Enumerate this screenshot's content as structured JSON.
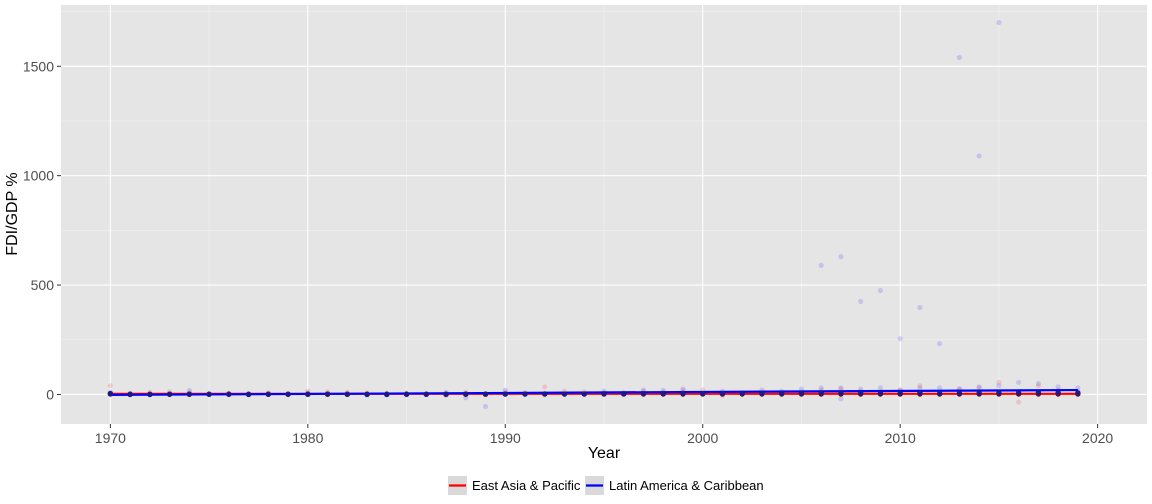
{
  "chart_data": {
    "type": "scatter",
    "title": "",
    "xlabel": "Year",
    "ylabel": "FDI/GDP %",
    "xlim": [
      1967.5,
      2022.5
    ],
    "ylim": [
      -135,
      1780
    ],
    "x_ticks": [
      1970,
      1980,
      1990,
      2000,
      2010,
      2020
    ],
    "y_ticks": [
      0,
      500,
      1000,
      1500
    ],
    "grid": true,
    "legend_position": "bottom",
    "background": "#e5e5e5",
    "series": [
      {
        "name": "East Asia & Pacific",
        "color": "#ff0000",
        "raw_points": [
          [
            1970,
            40
          ],
          [
            1970,
            5
          ],
          [
            1972,
            10
          ],
          [
            1973,
            12
          ],
          [
            1974,
            8
          ],
          [
            1976,
            6
          ],
          [
            1978,
            8
          ],
          [
            1980,
            15
          ],
          [
            1981,
            12
          ],
          [
            1982,
            10
          ],
          [
            1983,
            8
          ],
          [
            1985,
            5
          ],
          [
            1987,
            -5
          ],
          [
            1988,
            10
          ],
          [
            1990,
            12
          ],
          [
            1991,
            8
          ],
          [
            1992,
            35
          ],
          [
            1993,
            15
          ],
          [
            1994,
            12
          ],
          [
            1995,
            8
          ],
          [
            1996,
            10
          ],
          [
            1997,
            15
          ],
          [
            1998,
            12
          ],
          [
            1999,
            18
          ],
          [
            2000,
            20
          ],
          [
            2001,
            -5
          ],
          [
            2002,
            8
          ],
          [
            2003,
            10
          ],
          [
            2004,
            8
          ],
          [
            2005,
            12
          ],
          [
            2006,
            20
          ],
          [
            2007,
            25
          ],
          [
            2008,
            15
          ],
          [
            2009,
            12
          ],
          [
            2010,
            20
          ],
          [
            2011,
            40
          ],
          [
            2012,
            10
          ],
          [
            2013,
            25
          ],
          [
            2014,
            30
          ],
          [
            2015,
            55
          ],
          [
            2016,
            -35
          ],
          [
            2017,
            40
          ],
          [
            2018,
            20
          ],
          [
            2019,
            15
          ]
        ],
        "means": [
          [
            1970,
            2
          ],
          [
            1971,
            1
          ],
          [
            1972,
            1
          ],
          [
            1973,
            1
          ],
          [
            1974,
            1
          ],
          [
            1975,
            1
          ],
          [
            1976,
            1
          ],
          [
            1977,
            1
          ],
          [
            1978,
            1
          ],
          [
            1979,
            1
          ],
          [
            1980,
            1
          ],
          [
            1981,
            1
          ],
          [
            1982,
            1
          ],
          [
            1983,
            1
          ],
          [
            1984,
            1
          ],
          [
            1985,
            1
          ],
          [
            1986,
            1
          ],
          [
            1987,
            1
          ],
          [
            1988,
            1
          ],
          [
            1989,
            1
          ],
          [
            1990,
            2
          ],
          [
            1991,
            2
          ],
          [
            1992,
            2
          ],
          [
            1993,
            2
          ],
          [
            1994,
            2
          ],
          [
            1995,
            2
          ],
          [
            1996,
            2
          ],
          [
            1997,
            2
          ],
          [
            1998,
            2
          ],
          [
            1999,
            2
          ],
          [
            2000,
            2
          ],
          [
            2001,
            2
          ],
          [
            2002,
            2
          ],
          [
            2003,
            2
          ],
          [
            2004,
            2
          ],
          [
            2005,
            2
          ],
          [
            2006,
            2
          ],
          [
            2007,
            2
          ],
          [
            2008,
            2
          ],
          [
            2009,
            2
          ],
          [
            2010,
            2
          ],
          [
            2011,
            2
          ],
          [
            2012,
            2
          ],
          [
            2013,
            2
          ],
          [
            2014,
            2
          ],
          [
            2015,
            2
          ],
          [
            2016,
            2
          ],
          [
            2017,
            2
          ],
          [
            2018,
            2
          ],
          [
            2019,
            2
          ]
        ],
        "trend": [
          [
            1970,
            3
          ],
          [
            2019,
            3
          ]
        ]
      },
      {
        "name": "Latin America & Caribbean",
        "color": "#0000ff",
        "raw_points": [
          [
            1970,
            10
          ],
          [
            1971,
            5
          ],
          [
            1974,
            18
          ],
          [
            1980,
            8
          ],
          [
            1984,
            5
          ],
          [
            1987,
            10
          ],
          [
            1988,
            -15
          ],
          [
            1989,
            -55
          ],
          [
            1990,
            20
          ],
          [
            1992,
            5
          ],
          [
            1995,
            15
          ],
          [
            1997,
            20
          ],
          [
            1998,
            18
          ],
          [
            1999,
            25
          ],
          [
            2001,
            15
          ],
          [
            2003,
            20
          ],
          [
            2004,
            15
          ],
          [
            2005,
            25
          ],
          [
            2006,
            590
          ],
          [
            2006,
            30
          ],
          [
            2007,
            630
          ],
          [
            2007,
            30
          ],
          [
            2007,
            -20
          ],
          [
            2008,
            425
          ],
          [
            2008,
            25
          ],
          [
            2009,
            475
          ],
          [
            2009,
            30
          ],
          [
            2010,
            255
          ],
          [
            2010,
            20
          ],
          [
            2011,
            397
          ],
          [
            2011,
            30
          ],
          [
            2012,
            232
          ],
          [
            2012,
            30
          ],
          [
            2013,
            1540
          ],
          [
            2013,
            25
          ],
          [
            2014,
            1090
          ],
          [
            2014,
            35
          ],
          [
            2015,
            1700
          ],
          [
            2015,
            40
          ],
          [
            2016,
            55
          ],
          [
            2017,
            50
          ],
          [
            2018,
            35
          ],
          [
            2019,
            30
          ]
        ],
        "means": [
          [
            1970,
            4
          ],
          [
            1971,
            0
          ],
          [
            1972,
            0
          ],
          [
            1973,
            1
          ],
          [
            1974,
            1
          ],
          [
            1975,
            1
          ],
          [
            1976,
            1
          ],
          [
            1977,
            0
          ],
          [
            1978,
            1
          ],
          [
            1979,
            1
          ],
          [
            1980,
            1
          ],
          [
            1981,
            2
          ],
          [
            1982,
            1
          ],
          [
            1983,
            0
          ],
          [
            1984,
            0
          ],
          [
            1985,
            1
          ],
          [
            1986,
            1
          ],
          [
            1987,
            1
          ],
          [
            1988,
            2
          ],
          [
            1989,
            2
          ],
          [
            1990,
            2
          ],
          [
            1991,
            2
          ],
          [
            1992,
            2
          ],
          [
            1993,
            2
          ],
          [
            1994,
            2
          ],
          [
            1995,
            3
          ],
          [
            1996,
            3
          ],
          [
            1997,
            4
          ],
          [
            1998,
            4
          ],
          [
            1999,
            5
          ],
          [
            2000,
            4
          ],
          [
            2001,
            4
          ],
          [
            2002,
            5
          ],
          [
            2003,
            5
          ],
          [
            2004,
            5
          ],
          [
            2005,
            6
          ],
          [
            2006,
            7
          ],
          [
            2007,
            7
          ],
          [
            2008,
            6
          ],
          [
            2009,
            6
          ],
          [
            2010,
            6
          ],
          [
            2011,
            7
          ],
          [
            2012,
            5
          ],
          [
            2013,
            6
          ],
          [
            2014,
            6
          ],
          [
            2015,
            7
          ],
          [
            2016,
            7
          ],
          [
            2017,
            8
          ],
          [
            2018,
            8
          ],
          [
            2019,
            7
          ]
        ],
        "trend": [
          [
            1970,
            -2
          ],
          [
            2019,
            20
          ]
        ]
      }
    ]
  }
}
